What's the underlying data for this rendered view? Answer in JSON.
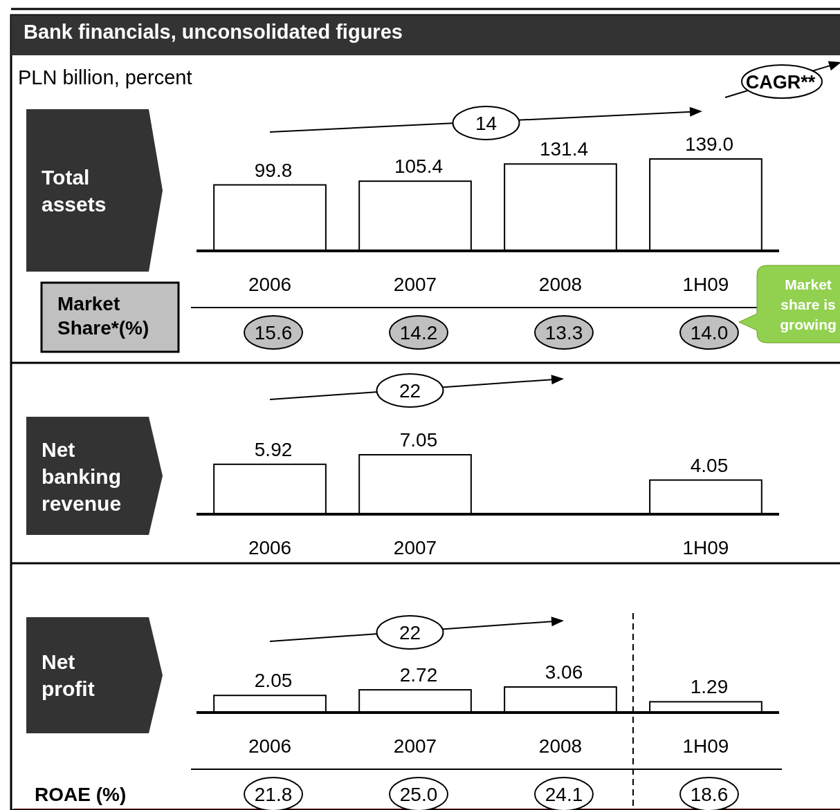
{
  "chart_data": [
    {
      "type": "bar",
      "title": "Bank financials, unconsolidated figures",
      "subtitle": "PLN billion, percent",
      "ylabel": "Total assets",
      "categories": [
        "2006",
        "2007",
        "2008",
        "1H09"
      ],
      "values": [
        99.8,
        105.4,
        131.4,
        139.0
      ],
      "value_labels": [
        "99.8",
        "105.4",
        "131.4",
        "139.0"
      ],
      "color": "#ffffff",
      "annotations": [
        "14",
        "Market Share*(%)",
        "15.6",
        "14.2",
        "13.3",
        "14.0",
        "Market share is growing",
        "CAGR**"
      ]
    },
    {
      "type": "bar",
      "ylabel": "Net banking revenue",
      "categories": [
        "2006",
        "2007",
        null,
        "1H09"
      ],
      "values": [
        5.92,
        7.05,
        null,
        4.05
      ],
      "data_labels": true,
      "color": "#ffffff",
      "annotations": [
        "22"
      ]
    },
    {
      "type": "bar",
      "ylabel": "Net profit",
      "categories": [
        "2006",
        "2007",
        "2008",
        "1H09"
      ],
      "values": [
        2.05,
        2.72,
        3.06,
        1.29
      ],
      "data_labels": true,
      "color": "#ffffff",
      "annotations": [
        "22",
        "ROAE (%)",
        "21.8",
        "25.0",
        "24.1",
        "18.6"
      ]
    }
  ]
}
